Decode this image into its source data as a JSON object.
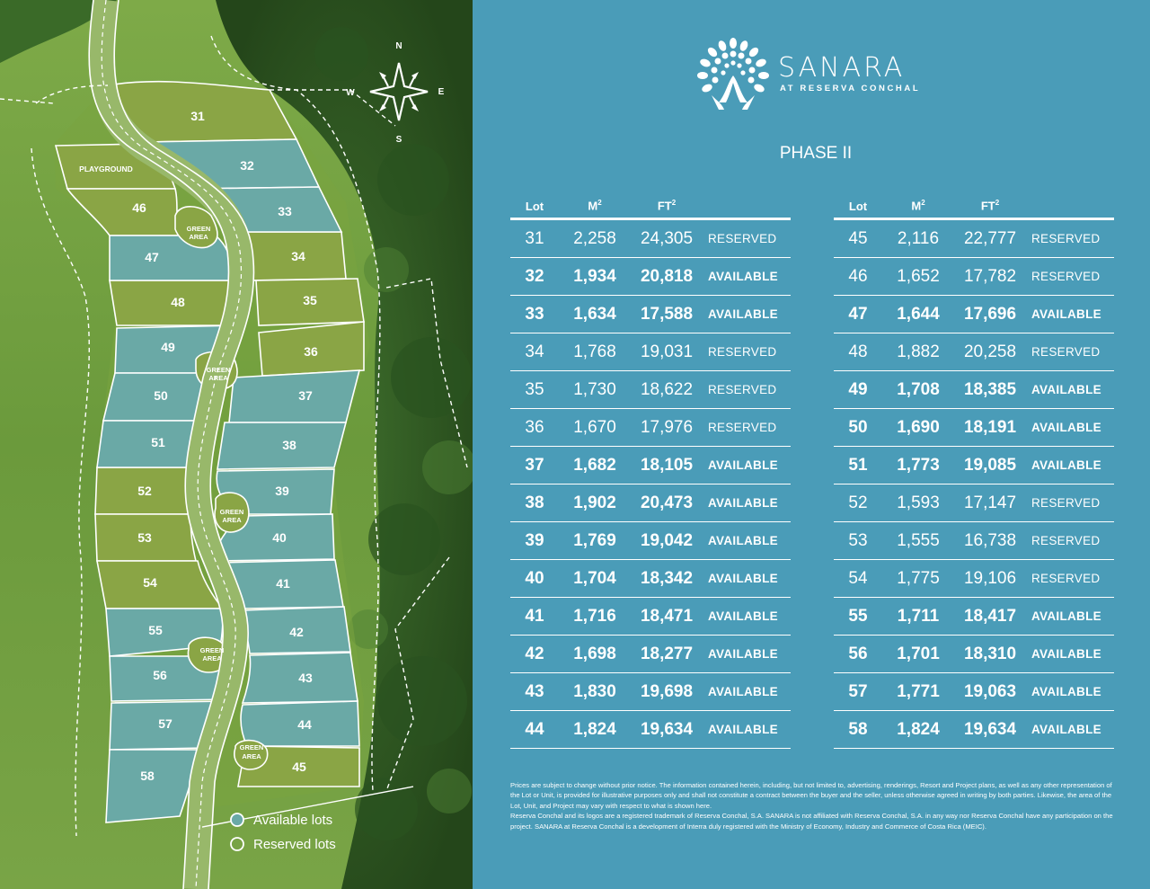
{
  "brand": {
    "name": "SANARA",
    "subtitle": "AT RESERVA CONCHAL"
  },
  "phase": "PHASE II",
  "table_headers": {
    "lot": "Lot",
    "m2": "M",
    "ft2": "FT",
    "sup": "2"
  },
  "tables": [
    [
      {
        "lot": "31",
        "m2": "2,258",
        "ft2": "24,305",
        "status": "RESERVED"
      },
      {
        "lot": "32",
        "m2": "1,934",
        "ft2": "20,818",
        "status": "AVAILABLE"
      },
      {
        "lot": "33",
        "m2": "1,634",
        "ft2": "17,588",
        "status": "AVAILABLE"
      },
      {
        "lot": "34",
        "m2": "1,768",
        "ft2": "19,031",
        "status": "RESERVED"
      },
      {
        "lot": "35",
        "m2": "1,730",
        "ft2": "18,622",
        "status": "RESERVED"
      },
      {
        "lot": "36",
        "m2": "1,670",
        "ft2": "17,976",
        "status": "RESERVED"
      },
      {
        "lot": "37",
        "m2": "1,682",
        "ft2": "18,105",
        "status": "AVAILABLE"
      },
      {
        "lot": "38",
        "m2": "1,902",
        "ft2": "20,473",
        "status": "AVAILABLE"
      },
      {
        "lot": "39",
        "m2": "1,769",
        "ft2": "19,042",
        "status": "AVAILABLE"
      },
      {
        "lot": "40",
        "m2": "1,704",
        "ft2": "18,342",
        "status": "AVAILABLE"
      },
      {
        "lot": "41",
        "m2": "1,716",
        "ft2": "18,471",
        "status": "AVAILABLE"
      },
      {
        "lot": "42",
        "m2": "1,698",
        "ft2": "18,277",
        "status": "AVAILABLE"
      },
      {
        "lot": "43",
        "m2": "1,830",
        "ft2": "19,698",
        "status": "AVAILABLE"
      },
      {
        "lot": "44",
        "m2": "1,824",
        "ft2": "19,634",
        "status": "AVAILABLE"
      }
    ],
    [
      {
        "lot": "45",
        "m2": "2,116",
        "ft2": "22,777",
        "status": "RESERVED"
      },
      {
        "lot": "46",
        "m2": "1,652",
        "ft2": "17,782",
        "status": "RESERVED"
      },
      {
        "lot": "47",
        "m2": "1,644",
        "ft2": "17,696",
        "status": "AVAILABLE"
      },
      {
        "lot": "48",
        "m2": "1,882",
        "ft2": "20,258",
        "status": "RESERVED"
      },
      {
        "lot": "49",
        "m2": "1,708",
        "ft2": "18,385",
        "status": "AVAILABLE"
      },
      {
        "lot": "50",
        "m2": "1,690",
        "ft2": "18,191",
        "status": "AVAILABLE"
      },
      {
        "lot": "51",
        "m2": "1,773",
        "ft2": "19,085",
        "status": "AVAILABLE"
      },
      {
        "lot": "52",
        "m2": "1,593",
        "ft2": "17,147",
        "status": "RESERVED"
      },
      {
        "lot": "53",
        "m2": "1,555",
        "ft2": "16,738",
        "status": "RESERVED"
      },
      {
        "lot": "54",
        "m2": "1,775",
        "ft2": "19,106",
        "status": "RESERVED"
      },
      {
        "lot": "55",
        "m2": "1,711",
        "ft2": "18,417",
        "status": "AVAILABLE"
      },
      {
        "lot": "56",
        "m2": "1,701",
        "ft2": "18,310",
        "status": "AVAILABLE"
      },
      {
        "lot": "57",
        "m2": "1,771",
        "ft2": "19,063",
        "status": "AVAILABLE"
      },
      {
        "lot": "58",
        "m2": "1,824",
        "ft2": "19,634",
        "status": "AVAILABLE"
      }
    ]
  ],
  "disclaimer": [
    "Prices are subject to change without prior notice. The information contained herein, including, but not limited to, advertising, renderings, Resort and Project plans, as well as any other representation of the Lot or Unit, is provided for illustrative purposes only and shall not constitute a contract between the buyer and the seller, unless otherwise agreed in writing by both parties. Likewise, the area of the Lot, Unit, and Project may vary with respect to what is shown here.",
    "Reserva Conchal and its logos are a registered trademark of Reserva Conchal, S.A. SANARA is not affiliated with Reserva Conchal, S.A. in any way nor Reserva Conchal have any participation on the project. SANARA at Reserva Conchal is a development of Interra duly registered with the Ministry of Economy, Industry and Commerce of Costa Rica (MEIC)."
  ],
  "legend": {
    "available": "Available lots",
    "reserved": "Reserved lots"
  },
  "compass": {
    "n": "N",
    "s": "S",
    "e": "E",
    "w": "W"
  },
  "map_labels": {
    "playground": "PLAYGROUND",
    "green_area_1": "GREEN",
    "green_area_2": "AREA",
    "lots": [
      "31",
      "32",
      "33",
      "34",
      "35",
      "36",
      "37",
      "38",
      "39",
      "40",
      "41",
      "42",
      "43",
      "44",
      "45",
      "46",
      "47",
      "48",
      "49",
      "50",
      "51",
      "52",
      "53",
      "54",
      "55",
      "56",
      "57",
      "58"
    ]
  },
  "colors": {
    "available_fill": "#5fa8a8",
    "reserved_fill": "#8ea84a",
    "panel": "#4a9cb8",
    "forest": "#2f5a22",
    "grass": "#6f9a3e"
  }
}
